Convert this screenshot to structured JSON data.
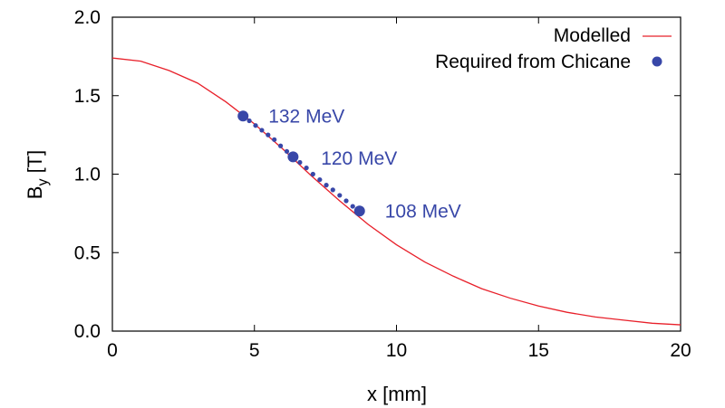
{
  "chart_data": {
    "type": "line",
    "xlabel": "x [mm]",
    "ylabel_main": "B",
    "ylabel_sub": "y",
    "ylabel_unit": " [T]",
    "xlim": [
      0,
      20
    ],
    "ylim": [
      0,
      2.0
    ],
    "x_ticks": [
      0,
      5,
      10,
      15,
      20
    ],
    "x_tick_labels": [
      "0",
      "5",
      "10",
      "15",
      "20"
    ],
    "y_ticks": [
      0,
      0.5,
      1.0,
      1.5,
      2.0
    ],
    "y_tick_labels": [
      "0.0",
      "0.5",
      "1.0",
      "1.5",
      "2.0"
    ],
    "grid": false,
    "legend": {
      "placement": "top-right"
    },
    "series": [
      {
        "name": "Modelled",
        "kind": "line",
        "color": "#e8202a",
        "x": [
          0,
          1,
          2,
          3,
          4,
          5,
          6,
          7,
          8,
          9,
          10,
          11,
          12,
          13,
          14,
          15,
          16,
          17,
          18,
          19,
          20
        ],
        "y": [
          1.74,
          1.72,
          1.66,
          1.58,
          1.46,
          1.32,
          1.16,
          0.99,
          0.83,
          0.68,
          0.55,
          0.44,
          0.35,
          0.27,
          0.21,
          0.16,
          0.12,
          0.09,
          0.07,
          0.05,
          0.04
        ]
      },
      {
        "name": "Required from Chicane",
        "kind": "points",
        "color": "#3847a8",
        "x": [
          4.6,
          4.82,
          5.04,
          5.26,
          5.48,
          5.7,
          5.92,
          6.14,
          6.36,
          6.6,
          6.83,
          7.06,
          7.3,
          7.53,
          7.76,
          8.0,
          8.23,
          8.46,
          8.7
        ],
        "y": [
          1.37,
          1.34,
          1.31,
          1.28,
          1.25,
          1.22,
          1.18,
          1.145,
          1.11,
          1.075,
          1.04,
          1.0,
          0.965,
          0.93,
          0.9,
          0.865,
          0.83,
          0.795,
          0.765
        ],
        "major_indices": [
          0,
          8,
          18
        ]
      }
    ],
    "annotations": [
      {
        "text": "132 MeV",
        "x": 4.6,
        "y": 1.37
      },
      {
        "text": "120 MeV",
        "x": 6.45,
        "y": 1.1
      },
      {
        "text": "108 MeV",
        "x": 8.7,
        "y": 0.765
      }
    ]
  }
}
